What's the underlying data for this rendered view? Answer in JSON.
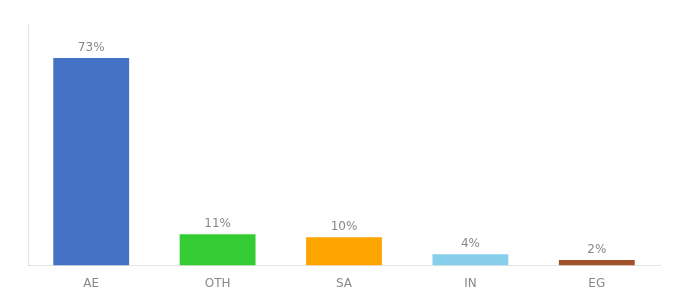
{
  "chart_data": {
    "type": "bar",
    "categories": [
      "AE",
      "OTH",
      "SA",
      "IN",
      "EG"
    ],
    "values": [
      73,
      11,
      10,
      4,
      2
    ],
    "value_labels": [
      "73%",
      "11%",
      "10%",
      "4%",
      "2%"
    ],
    "colors": [
      "#4472c4",
      "#33cc33",
      "#ffa500",
      "#87ceeb",
      "#a0522d"
    ],
    "ylim": [
      0,
      85
    ],
    "data_labels": true,
    "tick_labels": "x",
    "grid": false
  }
}
